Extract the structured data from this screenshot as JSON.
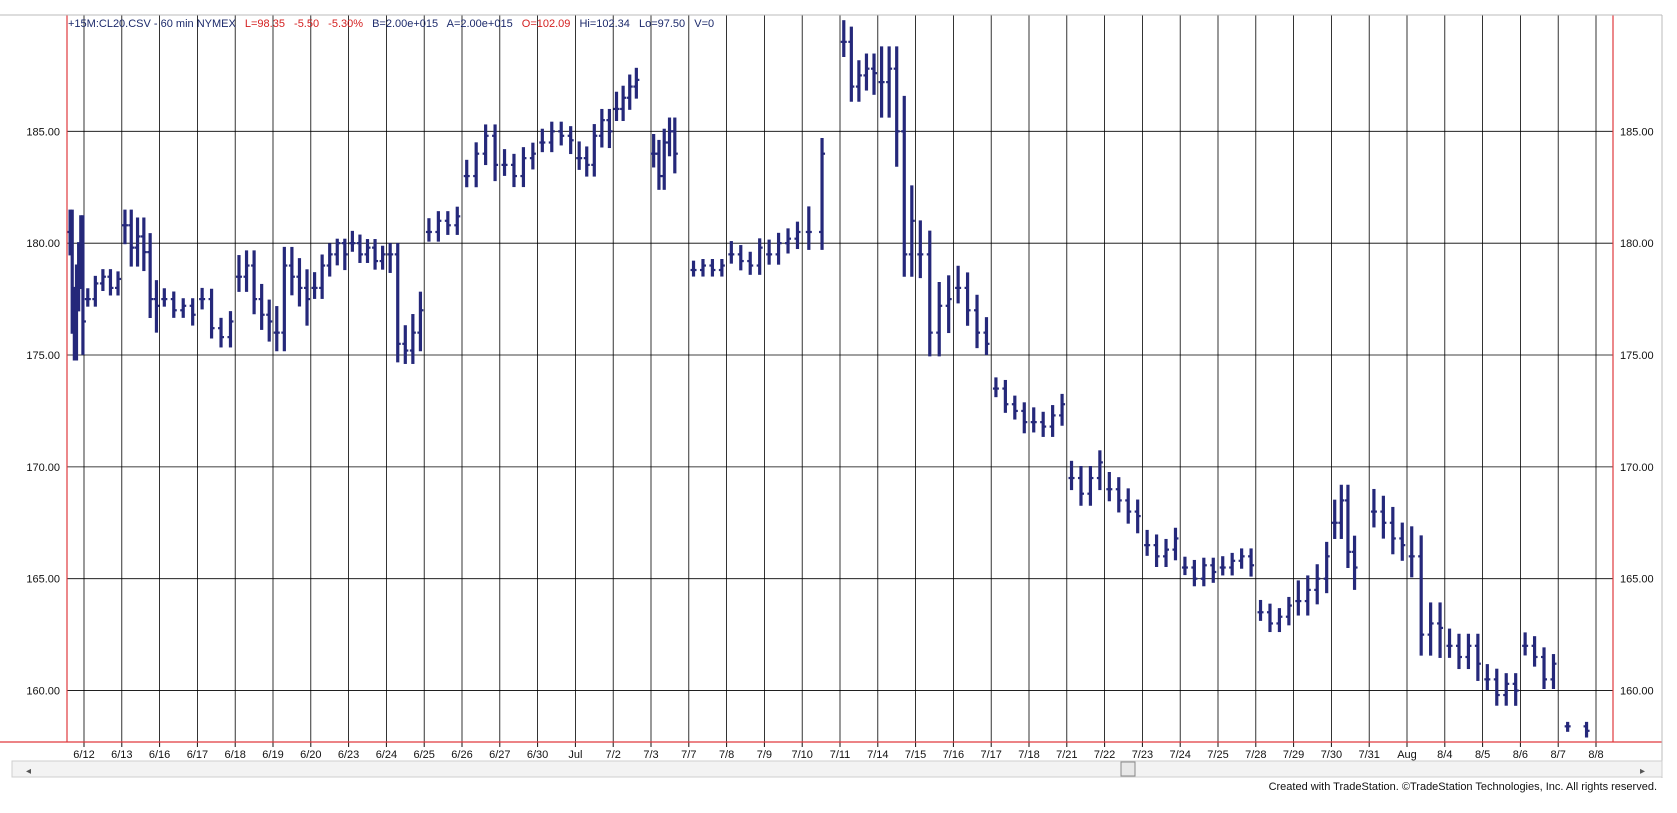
{
  "header": {
    "symbol": "+15M:CL20.CSV - 60 min  NYMEX",
    "last": "L=98.35",
    "change": "-5.50",
    "change_pct": "-5.30%",
    "bid": "B=2.00e+015",
    "ask": "A=2.00e+015",
    "open": "O=102.09",
    "high": "Hi=102.34",
    "low": "Lo=97.50",
    "volume": "V=0"
  },
  "footer": "Created with TradeStation. ©TradeStation Technologies, Inc. All rights reserved.",
  "colors": {
    "bars": "#25287a",
    "grid": "#000000",
    "axis_red": "#e0393e",
    "header_red": "#d42020",
    "header_navy": "#1c2a6b"
  },
  "scrollbar": {
    "left_icon": "chevron-left-icon",
    "right_icon": "chevron-right-icon"
  },
  "chart_data": {
    "type": "ohlc",
    "interval": "60 min",
    "ylim": [
      157.7,
      190.2
    ],
    "yticks": [
      160,
      165,
      170,
      175,
      180,
      185
    ],
    "ytick_labels": [
      "160.00",
      "165.00",
      "170.00",
      "175.00",
      "180.00",
      "185.00"
    ],
    "grid": true,
    "sessions": [
      {
        "label": "6/12",
        "high": 181.5,
        "low": 174.7,
        "close": 176.0,
        "trend": [
          180.5,
          177.0,
          175.8,
          178.0,
          179.0,
          180.2,
          176.5
        ],
        "gap_after": false
      },
      {
        "label": "6/13",
        "high": 179.2,
        "low": 177.0,
        "close": 178.1,
        "trend": [
          177.5,
          178.2,
          178.5,
          178.0,
          178.4
        ],
        "gap_after": false
      },
      {
        "label": "6/16",
        "high": 181.5,
        "low": 176.0,
        "close": 177.0,
        "trend": [
          180.8,
          179.8,
          180.3,
          179.6,
          177.5,
          177.2
        ],
        "gap_after": false
      },
      {
        "label": "6/17",
        "high": 178.2,
        "low": 176.0,
        "close": 176.5,
        "trend": [
          177.5,
          177.0,
          177.2,
          176.8
        ],
        "gap_after": false
      },
      {
        "label": "6/18",
        "high": 178.0,
        "low": 175.0,
        "close": 176.5,
        "trend": [
          177.5,
          176.2,
          175.8,
          176.5
        ],
        "gap_after": false
      },
      {
        "label": "6/19",
        "high": 180.0,
        "low": 175.6,
        "close": 177.0,
        "trend": [
          178.5,
          179.0,
          177.5,
          176.8,
          176.5
        ],
        "gap_after": false
      },
      {
        "label": "6/20",
        "high": 180.2,
        "low": 174.8,
        "close": 177.0,
        "trend": [
          176.0,
          179.0,
          178.5,
          178.0,
          177.5
        ],
        "gap_after": false
      },
      {
        "label": "6/23",
        "high": 180.2,
        "low": 177.0,
        "close": 179.0,
        "trend": [
          178.0,
          179.0,
          179.5,
          180.0,
          179.5
        ],
        "gap_after": false
      },
      {
        "label": "6/24",
        "high": 180.8,
        "low": 178.3,
        "close": 179.3,
        "trend": [
          180.0,
          179.5,
          179.8,
          179.2,
          179.5
        ],
        "gap_after": false
      },
      {
        "label": "6/25",
        "high": 180.0,
        "low": 174.6,
        "close": 177.2,
        "trend": [
          179.5,
          175.5,
          175.2,
          176.0,
          177.0
        ],
        "gap_after": false
      },
      {
        "label": "6/26",
        "high": 182.8,
        "low": 180.0,
        "close": 180.8,
        "trend": [
          180.5,
          181.0,
          180.8,
          181.2
        ],
        "gap_after": false
      },
      {
        "label": "6/27",
        "high": 185.8,
        "low": 182.5,
        "close": 183.5,
        "trend": [
          183.0,
          184.0,
          184.8,
          183.5
        ],
        "gap_after": false
      },
      {
        "label": "6/30",
        "high": 185.0,
        "low": 181.8,
        "close": 183.8,
        "trend": [
          183.5,
          183.0,
          183.8,
          184.0
        ],
        "gap_after": false
      },
      {
        "label": "Jul",
        "high": 185.5,
        "low": 182.7,
        "close": 184.7,
        "trend": [
          184.5,
          185.0,
          184.8,
          184.6
        ],
        "gap_after": false
      },
      {
        "label": "7/2",
        "high": 186.0,
        "low": 182.6,
        "close": 185.2,
        "trend": [
          183.8,
          183.5,
          184.8,
          185.5,
          185.0
        ],
        "gap_after": false
      },
      {
        "label": "7/3",
        "high": 188.0,
        "low": 184.5,
        "close": 187.3,
        "trend": [
          186.0,
          186.5,
          187.0,
          187.3
        ],
        "gap_after": true
      },
      {
        "label": "7/7",
        "high": 186.2,
        "low": 182.2,
        "close": 184.0,
        "trend": [
          184.0,
          183.0,
          184.5,
          185.0,
          184.0
        ],
        "gap_after": true
      },
      {
        "label": "7/8",
        "high": 179.7,
        "low": 177.8,
        "close": 179.0,
        "trend": [
          178.8,
          179.0,
          178.8,
          179.0
        ],
        "gap_after": false
      },
      {
        "label": "7/9",
        "high": 180.7,
        "low": 178.0,
        "close": 179.4,
        "trend": [
          179.5,
          179.2,
          179.0,
          179.8
        ],
        "gap_after": false
      },
      {
        "label": "7/10",
        "high": 181.0,
        "low": 178.0,
        "close": 180.0,
        "trend": [
          179.5,
          180.0,
          180.2,
          180.5
        ],
        "gap_after": false
      },
      {
        "label": "7/11",
        "high": 184.7,
        "low": 179.5,
        "close": 184.0,
        "trend": [
          180.5,
          184.0
        ],
        "gap_after": true
      },
      {
        "label": "7/14",
        "high": 190.0,
        "low": 185.6,
        "close": 187.5,
        "trend": [
          189.0,
          187.0,
          187.5,
          187.8,
          187.6
        ],
        "gap_after": false
      },
      {
        "label": "7/15",
        "high": 188.8,
        "low": 178.5,
        "close": 180.5,
        "trend": [
          187.2,
          187.8,
          185.0,
          179.5,
          181.0
        ],
        "gap_after": false
      },
      {
        "label": "7/16",
        "high": 181.7,
        "low": 174.8,
        "close": 177.2,
        "trend": [
          179.5,
          176.0,
          177.2,
          177.5
        ],
        "gap_after": false
      },
      {
        "label": "7/17",
        "high": 179.5,
        "low": 175.0,
        "close": 176.0,
        "trend": [
          178.0,
          177.0,
          176.0,
          175.5
        ],
        "gap_after": false
      },
      {
        "label": "7/18",
        "high": 174.0,
        "low": 171.5,
        "close": 172.5,
        "trend": [
          173.5,
          172.8,
          172.5,
          172.0
        ],
        "gap_after": false
      },
      {
        "label": "7/21",
        "high": 173.8,
        "low": 170.8,
        "close": 172.3,
        "trend": [
          172.0,
          171.8,
          172.3,
          172.8
        ],
        "gap_after": false
      },
      {
        "label": "7/22",
        "high": 171.5,
        "low": 168.0,
        "close": 169.8,
        "trend": [
          169.5,
          168.8,
          169.5,
          170.2
        ],
        "gap_after": false
      },
      {
        "label": "7/23",
        "high": 170.5,
        "low": 167.0,
        "close": 168.5,
        "trend": [
          169.0,
          168.5,
          168.0,
          167.8
        ],
        "gap_after": false
      },
      {
        "label": "7/24",
        "high": 168.3,
        "low": 165.2,
        "close": 166.7,
        "trend": [
          166.5,
          166.0,
          166.3,
          166.8
        ],
        "gap_after": false
      },
      {
        "label": "7/25",
        "high": 166.4,
        "low": 164.2,
        "close": 165.5,
        "trend": [
          165.5,
          165.0,
          165.6,
          165.3
        ],
        "gap_after": false
      },
      {
        "label": "7/28",
        "high": 166.6,
        "low": 164.3,
        "close": 165.8,
        "trend": [
          165.5,
          165.8,
          166.0,
          165.6
        ],
        "gap_after": false
      },
      {
        "label": "7/29",
        "high": 164.5,
        "low": 162.0,
        "close": 163.5,
        "trend": [
          163.5,
          163.0,
          163.3,
          163.8
        ],
        "gap_after": false
      },
      {
        "label": "7/30",
        "high": 166.8,
        "low": 162.6,
        "close": 166.0,
        "trend": [
          164.0,
          164.5,
          165.0,
          166.0
        ],
        "gap_after": false
      },
      {
        "label": "7/31",
        "high": 169.2,
        "low": 164.5,
        "close": 166.0,
        "trend": [
          167.5,
          168.5,
          166.2,
          165.5
        ],
        "gap_after": true
      },
      {
        "label": "Aug",
        "high": 170.4,
        "low": 165.8,
        "close": 167.0,
        "trend": [
          168.0,
          167.5,
          166.8,
          166.5
        ],
        "gap_after": false
      },
      {
        "label": "8/4",
        "high": 167.4,
        "low": 161.3,
        "close": 162.8,
        "trend": [
          166.0,
          162.5,
          163.0,
          162.8
        ],
        "gap_after": false
      },
      {
        "label": "8/5",
        "high": 163.8,
        "low": 160.3,
        "close": 161.8,
        "trend": [
          162.0,
          161.5,
          162.0,
          161.2
        ],
        "gap_after": false
      },
      {
        "label": "8/6",
        "high": 162.0,
        "low": 158.9,
        "close": 160.5,
        "trend": [
          160.5,
          159.8,
          160.3,
          160.0
        ],
        "gap_after": false
      },
      {
        "label": "8/7",
        "high": 162.6,
        "low": 159.8,
        "close": 161.0,
        "trend": [
          162.0,
          161.5,
          160.5,
          161.2
        ],
        "gap_after": false
      },
      {
        "label": "8/8",
        "high": 158.6,
        "low": 157.9,
        "close": 158.2,
        "trend": [
          158.4,
          158.2
        ],
        "gap_after": false
      }
    ]
  }
}
